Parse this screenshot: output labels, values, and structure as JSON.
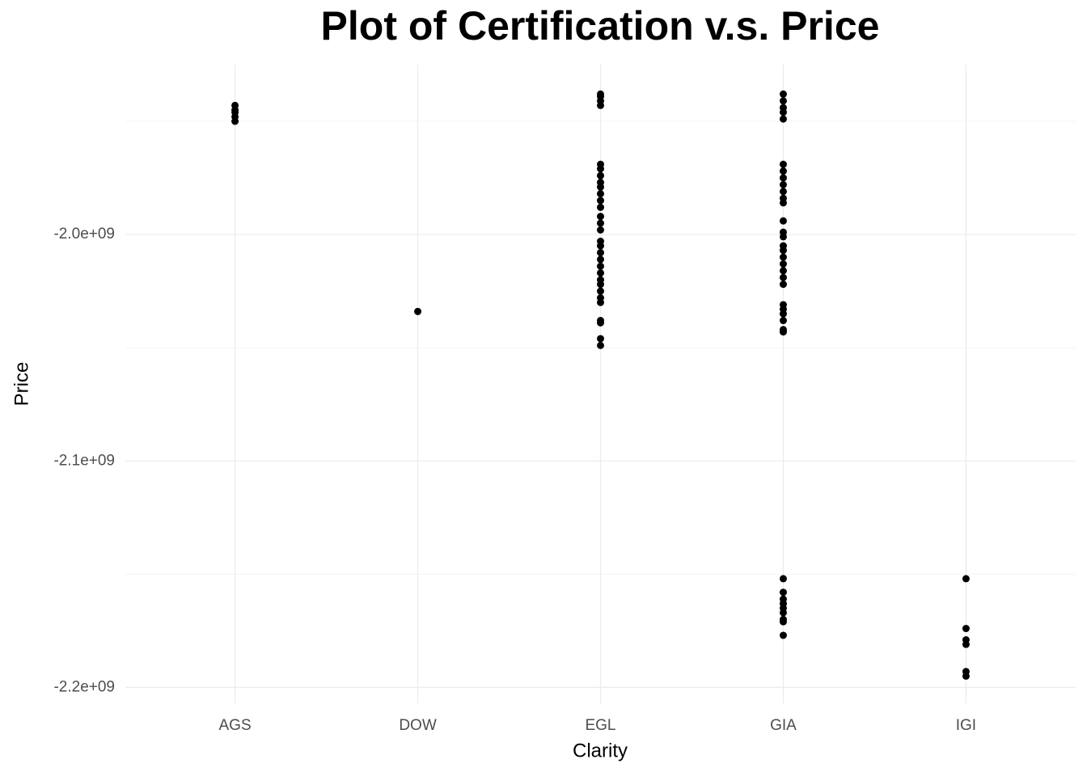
{
  "chart_data": {
    "type": "strip",
    "title": "Plot of Certification v.s. Price",
    "x_label": "Clarity",
    "y_label": "Price",
    "categories": [
      "AGS",
      "DOW",
      "EGL",
      "GIA",
      "IGI"
    ],
    "color": "#000000",
    "values": [
      [
        -1943000000,
        -1945000000,
        -1946000000,
        -1948000000,
        -1950000000
      ],
      [
        -2034000000
      ],
      [
        -1938000000,
        -1939000000,
        -1941000000,
        -1943000000,
        -1969000000,
        -1971000000,
        -1974000000,
        -1977000000,
        -1979000000,
        -1982000000,
        -1985000000,
        -1988000000,
        -1992000000,
        -1995000000,
        -1998000000,
        -2003000000,
        -2005000000,
        -2008000000,
        -2011000000,
        -2014000000,
        -2017000000,
        -2020000000,
        -2022000000,
        -2025000000,
        -2028000000,
        -2030000000,
        -2038000000,
        -2039000000,
        -2046000000,
        -2049000000
      ],
      [
        -1938000000,
        -1941000000,
        -1944000000,
        -1946000000,
        -1949000000,
        -1969000000,
        -1972000000,
        -1975000000,
        -1978000000,
        -1981000000,
        -1984000000,
        -1986000000,
        -1994000000,
        -1999000000,
        -2001000000,
        -2005000000,
        -2007000000,
        -2010000000,
        -2013000000,
        -2016000000,
        -2019000000,
        -2022000000,
        -2031000000,
        -2033000000,
        -2035000000,
        -2038000000,
        -2042000000,
        -2043000000,
        -2152000000,
        -2158000000,
        -2161000000,
        -2163000000,
        -2165000000,
        -2167000000,
        -2170000000,
        -2171000000,
        -2177000000
      ],
      [
        -2152000000,
        -2174000000,
        -2179000000,
        -2181000000,
        -2193000000,
        -2195000000
      ]
    ],
    "ylim": [
      -2207000000,
      -1925000000
    ],
    "yticks": [
      {
        "value": -2000000000,
        "label": "-2.0e+09"
      },
      {
        "value": -2100000000,
        "label": "-2.1e+09"
      },
      {
        "value": -2200000000,
        "label": "-2.2e+09"
      }
    ],
    "y_minor_ticks": [
      -1950000000,
      -2050000000,
      -2150000000
    ],
    "grid": true
  }
}
